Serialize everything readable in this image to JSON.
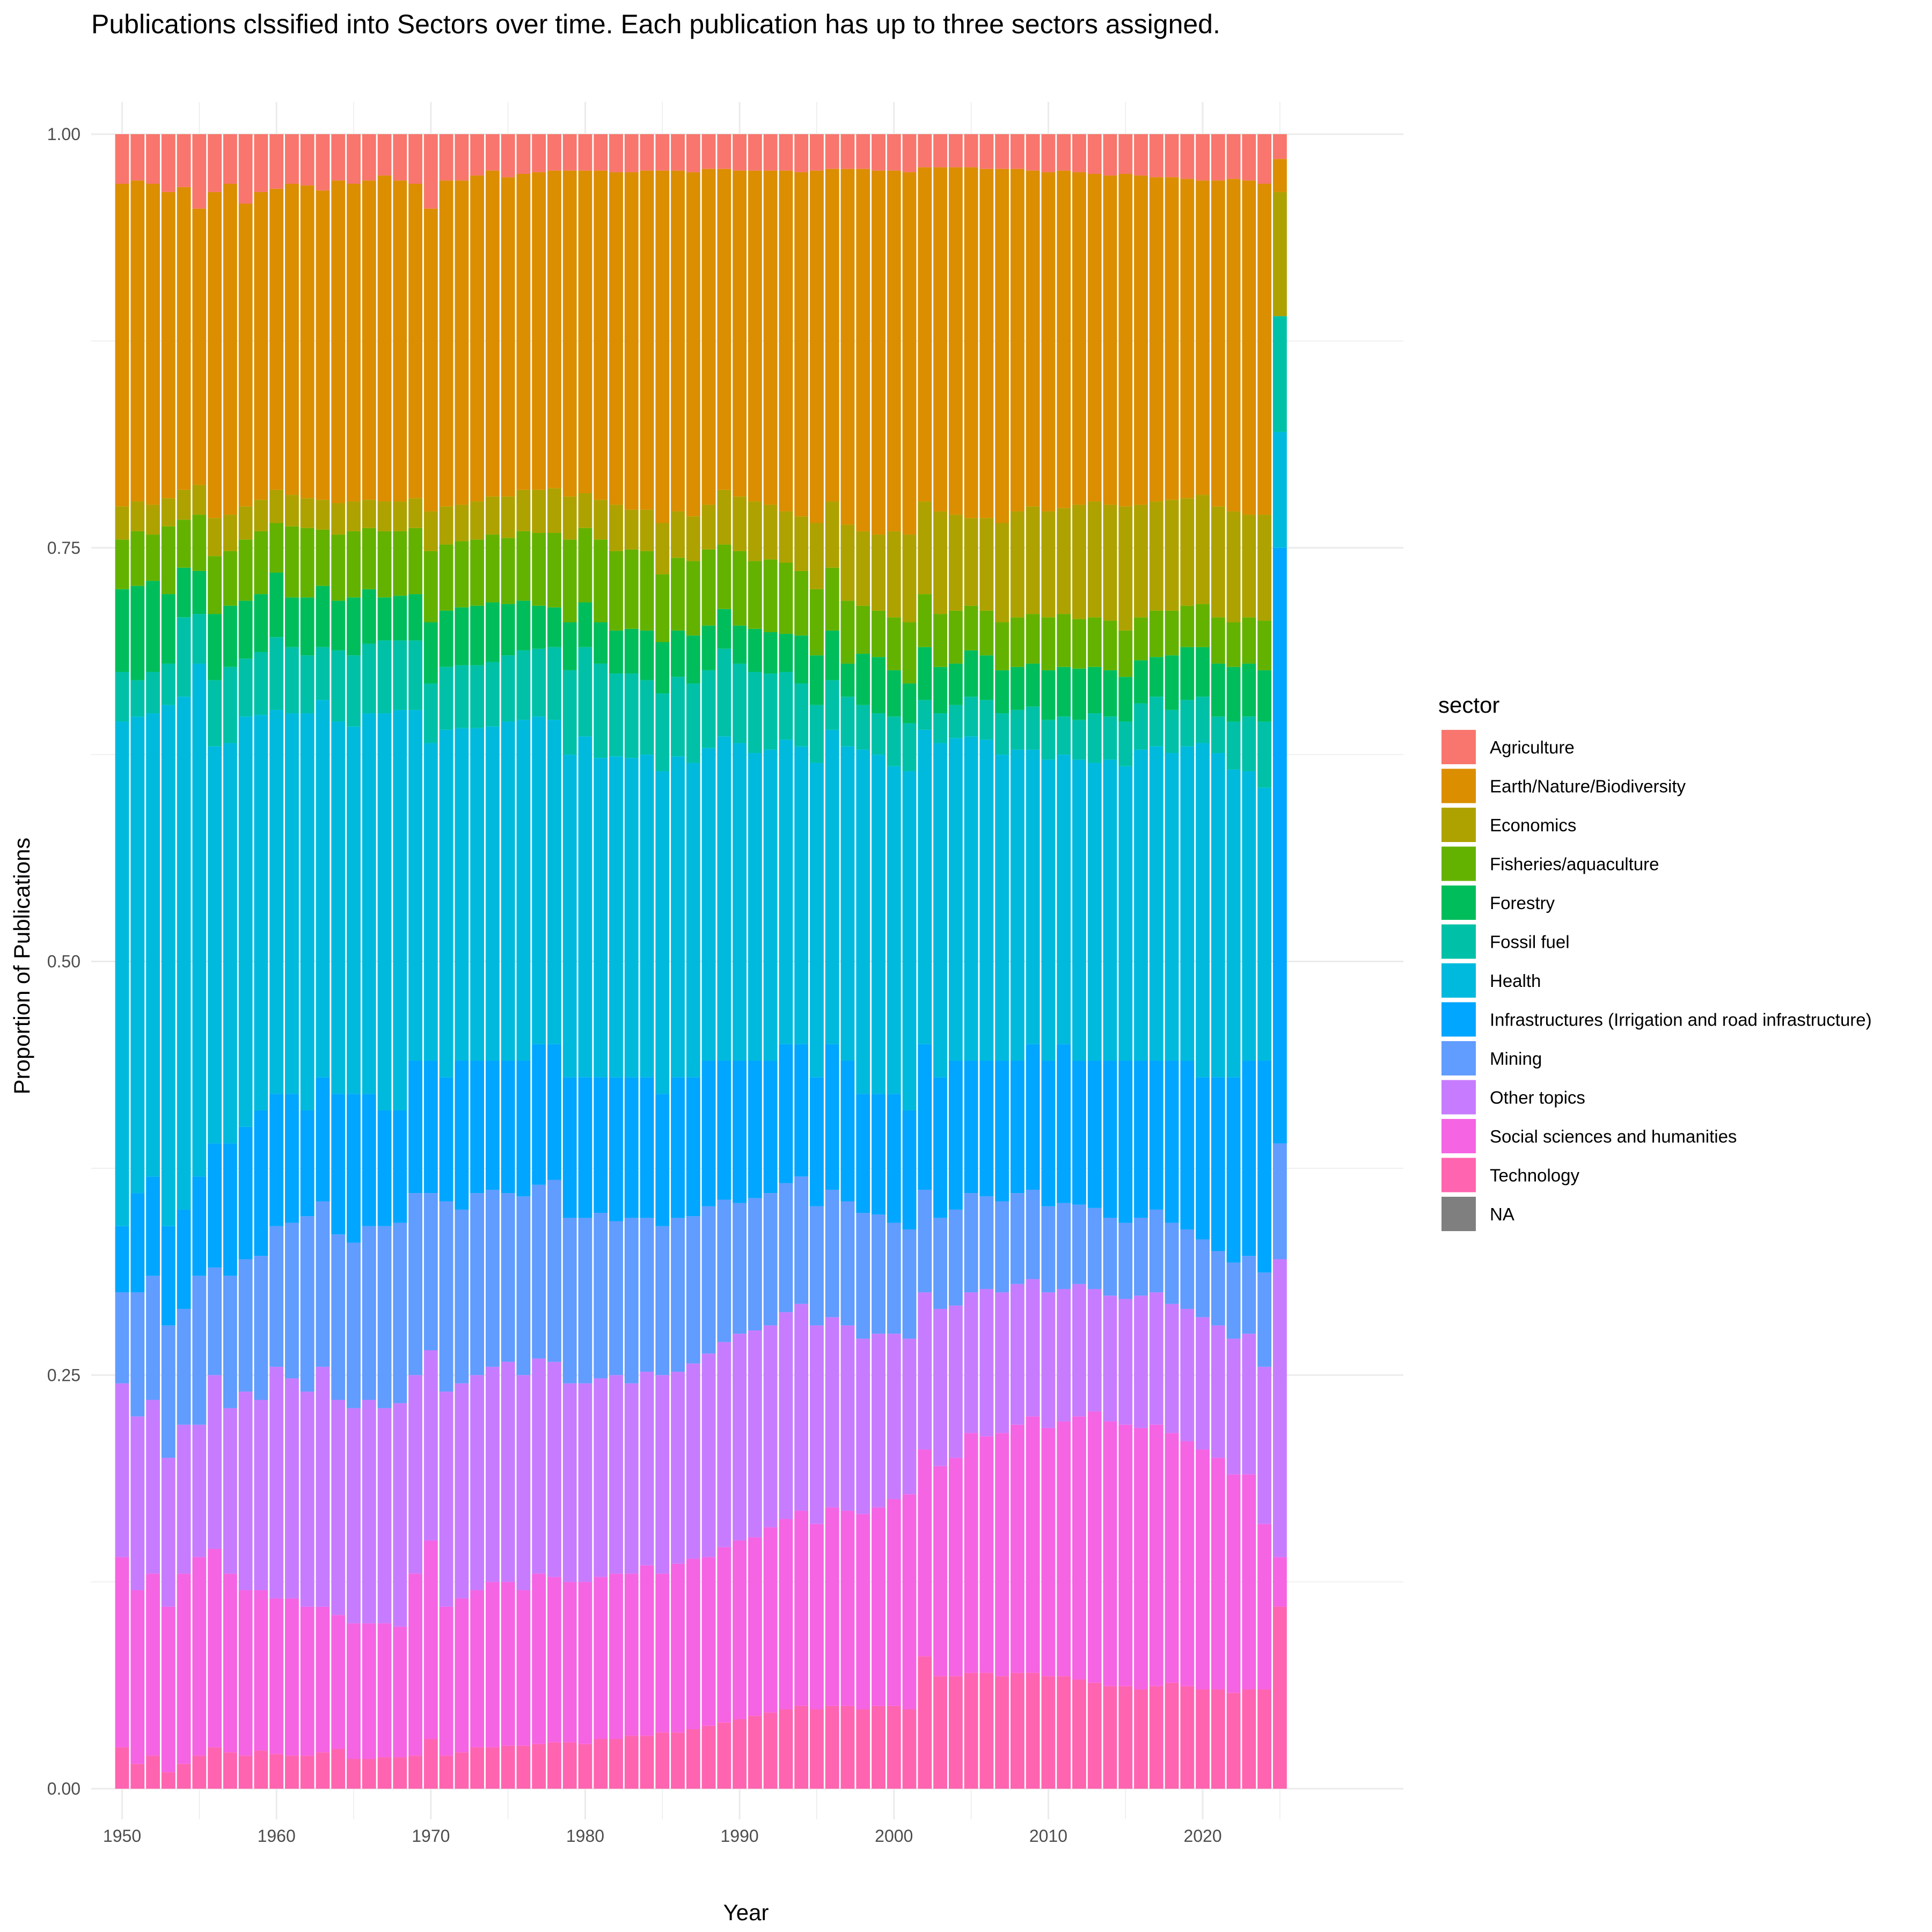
{
  "chart_data": {
    "type": "bar",
    "stacked": "proportional",
    "title": "Publications clssified into Sectors over time. Each publication has up to three sectors assigned.",
    "xlabel": "Year",
    "ylabel": "Proportion of Publications",
    "ylim": [
      0,
      1
    ],
    "xlim": [
      1948,
      2033
    ],
    "x_ticks": [
      1950,
      1960,
      1970,
      1980,
      1990,
      2000,
      2010,
      2020
    ],
    "y_ticks": [
      "0.00",
      "0.25",
      "0.50",
      "0.75",
      "1.00"
    ],
    "grid": true,
    "legend_title": "sector",
    "legend_position": "right",
    "series": [
      {
        "name": "Agriculture",
        "color": "#F8766D"
      },
      {
        "name": "Earth/Nature/Biodiversity",
        "color": "#DB8E00"
      },
      {
        "name": "Economics",
        "color": "#AEA200"
      },
      {
        "name": "Fisheries/aquaculture",
        "color": "#64B200"
      },
      {
        "name": "Forestry",
        "color": "#00BD5C"
      },
      {
        "name": "Fossil fuel",
        "color": "#00C1A7"
      },
      {
        "name": "Health",
        "color": "#00BADE"
      },
      {
        "name": "Infrastructures (Irrigation and road infrastructure)",
        "color": "#00A6FF"
      },
      {
        "name": "Mining",
        "color": "#619CFF"
      },
      {
        "name": "Other topics",
        "color": "#C77CFF"
      },
      {
        "name": "Social sciences and humanities",
        "color": "#F564E3"
      },
      {
        "name": "Technology",
        "color": "#FF64B0"
      },
      {
        "name": "NA",
        "color": "#7F7F7F"
      }
    ],
    "years": [
      1950,
      1951,
      1952,
      1953,
      1954,
      1955,
      1956,
      1957,
      1958,
      1959,
      1960,
      1961,
      1962,
      1963,
      1964,
      1965,
      1966,
      1967,
      1968,
      1969,
      1970,
      1971,
      1972,
      1973,
      1974,
      1975,
      1976,
      1977,
      1978,
      1979,
      1980,
      1981,
      1982,
      1983,
      1984,
      1985,
      1986,
      1987,
      1988,
      1989,
      1990,
      1991,
      1992,
      1993,
      1994,
      1995,
      1996,
      1997,
      1998,
      1999,
      2000,
      2001,
      2002,
      2003,
      2004,
      2005,
      2006,
      2007,
      2008,
      2009,
      2010,
      2011,
      2012,
      2013,
      2014,
      2015,
      2016,
      2017,
      2018,
      2019,
      2020,
      2021,
      2022,
      2023,
      2024,
      2025
    ],
    "cumulative_boundaries_note": "stack tops from bottom (Technology) upward; Agriculture fills to 1.00",
    "cumulative": [
      [
        0.025,
        0.14,
        0.245,
        0.3,
        0.34,
        0.645,
        0.675,
        0.725,
        0.755,
        0.775,
        0.97
      ],
      [
        0.015,
        0.12,
        0.225,
        0.3,
        0.36,
        0.648,
        0.67,
        0.727,
        0.76,
        0.778,
        0.972
      ],
      [
        0.02,
        0.13,
        0.235,
        0.31,
        0.37,
        0.65,
        0.675,
        0.73,
        0.758,
        0.776,
        0.97
      ],
      [
        0.01,
        0.11,
        0.2,
        0.28,
        0.34,
        0.655,
        0.68,
        0.722,
        0.763,
        0.78,
        0.965
      ],
      [
        0.015,
        0.13,
        0.22,
        0.29,
        0.35,
        0.66,
        0.708,
        0.738,
        0.767,
        0.785,
        0.968
      ],
      [
        0.02,
        0.14,
        0.22,
        0.31,
        0.37,
        0.68,
        0.71,
        0.736,
        0.77,
        0.788,
        0.955
      ],
      [
        0.025,
        0.145,
        0.25,
        0.315,
        0.39,
        0.63,
        0.67,
        0.71,
        0.745,
        0.768,
        0.965
      ],
      [
        0.022,
        0.13,
        0.23,
        0.31,
        0.39,
        0.632,
        0.678,
        0.715,
        0.748,
        0.77,
        0.97
      ],
      [
        0.02,
        0.12,
        0.24,
        0.32,
        0.4,
        0.648,
        0.683,
        0.718,
        0.755,
        0.775,
        0.958
      ],
      [
        0.023,
        0.12,
        0.235,
        0.322,
        0.41,
        0.649,
        0.687,
        0.722,
        0.76,
        0.779,
        0.965
      ],
      [
        0.021,
        0.115,
        0.255,
        0.34,
        0.42,
        0.652,
        0.696,
        0.735,
        0.765,
        0.785,
        0.967
      ],
      [
        0.02,
        0.115,
        0.248,
        0.342,
        0.42,
        0.65,
        0.69,
        0.72,
        0.763,
        0.782,
        0.97
      ],
      [
        0.02,
        0.11,
        0.24,
        0.346,
        0.41,
        0.65,
        0.685,
        0.72,
        0.762,
        0.78,
        0.969
      ],
      [
        0.022,
        0.11,
        0.255,
        0.355,
        0.43,
        0.658,
        0.69,
        0.727,
        0.761,
        0.779,
        0.966
      ],
      [
        0.024,
        0.105,
        0.235,
        0.335,
        0.42,
        0.645,
        0.688,
        0.718,
        0.758,
        0.777,
        0.972
      ],
      [
        0.018,
        0.1,
        0.23,
        0.33,
        0.42,
        0.642,
        0.685,
        0.72,
        0.76,
        0.778,
        0.97
      ],
      [
        0.018,
        0.1,
        0.235,
        0.34,
        0.42,
        0.65,
        0.692,
        0.725,
        0.762,
        0.779,
        0.972
      ],
      [
        0.019,
        0.1,
        0.23,
        0.34,
        0.41,
        0.65,
        0.694,
        0.72,
        0.76,
        0.778,
        0.975
      ],
      [
        0.019,
        0.098,
        0.233,
        0.342,
        0.41,
        0.652,
        0.694,
        0.721,
        0.76,
        0.778,
        0.972
      ],
      [
        0.02,
        0.13,
        0.25,
        0.36,
        0.44,
        0.652,
        0.694,
        0.722,
        0.762,
        0.78,
        0.97
      ],
      [
        0.03,
        0.15,
        0.265,
        0.36,
        0.44,
        0.632,
        0.668,
        0.705,
        0.748,
        0.772,
        0.955
      ],
      [
        0.02,
        0.11,
        0.24,
        0.355,
        0.43,
        0.64,
        0.678,
        0.712,
        0.752,
        0.775,
        0.972
      ],
      [
        0.022,
        0.115,
        0.245,
        0.35,
        0.44,
        0.641,
        0.679,
        0.714,
        0.754,
        0.776,
        0.972
      ],
      [
        0.025,
        0.12,
        0.25,
        0.36,
        0.44,
        0.641,
        0.679,
        0.715,
        0.755,
        0.778,
        0.975
      ],
      [
        0.025,
        0.125,
        0.255,
        0.362,
        0.44,
        0.642,
        0.681,
        0.717,
        0.758,
        0.781,
        0.978
      ],
      [
        0.026,
        0.125,
        0.258,
        0.36,
        0.44,
        0.645,
        0.685,
        0.716,
        0.756,
        0.781,
        0.974
      ],
      [
        0.026,
        0.12,
        0.25,
        0.358,
        0.44,
        0.646,
        0.688,
        0.718,
        0.76,
        0.785,
        0.976
      ],
      [
        0.027,
        0.13,
        0.26,
        0.365,
        0.45,
        0.648,
        0.689,
        0.715,
        0.759,
        0.785,
        0.977
      ],
      [
        0.028,
        0.128,
        0.258,
        0.368,
        0.45,
        0.646,
        0.69,
        0.714,
        0.759,
        0.786,
        0.978
      ],
      [
        0.028,
        0.125,
        0.245,
        0.345,
        0.43,
        0.625,
        0.676,
        0.705,
        0.755,
        0.781,
        0.978
      ],
      [
        0.027,
        0.125,
        0.245,
        0.345,
        0.43,
        0.636,
        0.69,
        0.717,
        0.762,
        0.783,
        0.978
      ],
      [
        0.03,
        0.128,
        0.248,
        0.348,
        0.43,
        0.623,
        0.68,
        0.705,
        0.755,
        0.779,
        0.978
      ],
      [
        0.03,
        0.13,
        0.25,
        0.343,
        0.43,
        0.624,
        0.674,
        0.7,
        0.748,
        0.776,
        0.977
      ],
      [
        0.032,
        0.13,
        0.245,
        0.345,
        0.43,
        0.623,
        0.674,
        0.701,
        0.749,
        0.773,
        0.977
      ],
      [
        0.032,
        0.135,
        0.252,
        0.345,
        0.43,
        0.625,
        0.67,
        0.7,
        0.748,
        0.773,
        0.978
      ],
      [
        0.034,
        0.13,
        0.25,
        0.34,
        0.42,
        0.615,
        0.662,
        0.693,
        0.734,
        0.765,
        0.978
      ],
      [
        0.034,
        0.136,
        0.252,
        0.345,
        0.43,
        0.624,
        0.672,
        0.7,
        0.744,
        0.772,
        0.978
      ],
      [
        0.036,
        0.139,
        0.257,
        0.346,
        0.43,
        0.62,
        0.668,
        0.697,
        0.742,
        0.769,
        0.977
      ],
      [
        0.038,
        0.14,
        0.263,
        0.352,
        0.44,
        0.629,
        0.676,
        0.703,
        0.749,
        0.776,
        0.979
      ],
      [
        0.04,
        0.146,
        0.27,
        0.356,
        0.44,
        0.636,
        0.689,
        0.713,
        0.752,
        0.785,
        0.979
      ],
      [
        0.042,
        0.15,
        0.275,
        0.354,
        0.44,
        0.632,
        0.68,
        0.703,
        0.748,
        0.781,
        0.978
      ],
      [
        0.044,
        0.152,
        0.277,
        0.357,
        0.44,
        0.626,
        0.675,
        0.701,
        0.742,
        0.778,
        0.978
      ],
      [
        0.046,
        0.158,
        0.28,
        0.36,
        0.44,
        0.628,
        0.674,
        0.699,
        0.743,
        0.776,
        0.978
      ],
      [
        0.048,
        0.163,
        0.288,
        0.366,
        0.45,
        0.634,
        0.675,
        0.698,
        0.741,
        0.772,
        0.978
      ],
      [
        0.05,
        0.168,
        0.293,
        0.37,
        0.45,
        0.63,
        0.668,
        0.697,
        0.736,
        0.769,
        0.977
      ],
      [
        0.048,
        0.16,
        0.28,
        0.352,
        0.43,
        0.62,
        0.655,
        0.685,
        0.725,
        0.765,
        0.978
      ],
      [
        0.05,
        0.17,
        0.285,
        0.362,
        0.45,
        0.64,
        0.67,
        0.7,
        0.738,
        0.778,
        0.979
      ],
      [
        0.05,
        0.168,
        0.28,
        0.355,
        0.44,
        0.63,
        0.66,
        0.68,
        0.718,
        0.764,
        0.979
      ],
      [
        0.048,
        0.166,
        0.272,
        0.348,
        0.42,
        0.628,
        0.655,
        0.686,
        0.715,
        0.76,
        0.979
      ],
      [
        0.05,
        0.17,
        0.275,
        0.347,
        0.42,
        0.625,
        0.65,
        0.684,
        0.712,
        0.758,
        0.978
      ],
      [
        0.05,
        0.175,
        0.275,
        0.342,
        0.42,
        0.618,
        0.648,
        0.676,
        0.708,
        0.76,
        0.978
      ],
      [
        0.048,
        0.178,
        0.272,
        0.338,
        0.41,
        0.615,
        0.644,
        0.668,
        0.705,
        0.758,
        0.977
      ],
      [
        0.08,
        0.205,
        0.3,
        0.362,
        0.45,
        0.64,
        0.658,
        0.69,
        0.722,
        0.778,
        0.98
      ],
      [
        0.068,
        0.195,
        0.29,
        0.345,
        0.43,
        0.632,
        0.65,
        0.678,
        0.71,
        0.772,
        0.98
      ],
      [
        0.068,
        0.2,
        0.292,
        0.35,
        0.44,
        0.635,
        0.655,
        0.68,
        0.712,
        0.77,
        0.98
      ],
      [
        0.07,
        0.215,
        0.3,
        0.36,
        0.44,
        0.636,
        0.66,
        0.688,
        0.715,
        0.768,
        0.98
      ],
      [
        0.07,
        0.213,
        0.302,
        0.358,
        0.44,
        0.634,
        0.658,
        0.685,
        0.712,
        0.768,
        0.979
      ],
      [
        0.068,
        0.215,
        0.3,
        0.355,
        0.44,
        0.625,
        0.65,
        0.676,
        0.705,
        0.765,
        0.979
      ],
      [
        0.07,
        0.22,
        0.305,
        0.36,
        0.44,
        0.628,
        0.652,
        0.678,
        0.708,
        0.772,
        0.979
      ],
      [
        0.07,
        0.225,
        0.308,
        0.362,
        0.45,
        0.628,
        0.654,
        0.68,
        0.71,
        0.775,
        0.978
      ],
      [
        0.068,
        0.218,
        0.3,
        0.352,
        0.44,
        0.622,
        0.646,
        0.676,
        0.708,
        0.772,
        0.977
      ],
      [
        0.068,
        0.222,
        0.302,
        0.354,
        0.45,
        0.625,
        0.648,
        0.678,
        0.71,
        0.774,
        0.978
      ],
      [
        0.066,
        0.225,
        0.305,
        0.353,
        0.44,
        0.622,
        0.646,
        0.677,
        0.707,
        0.776,
        0.977
      ],
      [
        0.064,
        0.228,
        0.302,
        0.351,
        0.44,
        0.62,
        0.65,
        0.678,
        0.708,
        0.778,
        0.976
      ],
      [
        0.062,
        0.222,
        0.298,
        0.345,
        0.44,
        0.622,
        0.648,
        0.676,
        0.706,
        0.776,
        0.975
      ],
      [
        0.062,
        0.22,
        0.296,
        0.342,
        0.44,
        0.618,
        0.645,
        0.672,
        0.7,
        0.775,
        0.976
      ],
      [
        0.06,
        0.218,
        0.298,
        0.345,
        0.44,
        0.628,
        0.656,
        0.682,
        0.708,
        0.776,
        0.975
      ],
      [
        0.062,
        0.22,
        0.3,
        0.35,
        0.44,
        0.63,
        0.66,
        0.684,
        0.712,
        0.778,
        0.974
      ],
      [
        0.064,
        0.215,
        0.293,
        0.342,
        0.44,
        0.626,
        0.652,
        0.685,
        0.712,
        0.779,
        0.974
      ],
      [
        0.062,
        0.21,
        0.29,
        0.338,
        0.44,
        0.63,
        0.658,
        0.69,
        0.715,
        0.78,
        0.973
      ],
      [
        0.06,
        0.205,
        0.285,
        0.332,
        0.43,
        0.632,
        0.66,
        0.69,
        0.716,
        0.782,
        0.972
      ],
      [
        0.06,
        0.2,
        0.28,
        0.325,
        0.43,
        0.626,
        0.648,
        0.68,
        0.708,
        0.775,
        0.972
      ],
      [
        0.058,
        0.19,
        0.272,
        0.318,
        0.43,
        0.616,
        0.645,
        0.678,
        0.705,
        0.772,
        0.973
      ],
      [
        0.06,
        0.19,
        0.275,
        0.322,
        0.44,
        0.615,
        0.648,
        0.68,
        0.708,
        0.77,
        0.972
      ],
      [
        0.06,
        0.16,
        0.255,
        0.312,
        0.44,
        0.605,
        0.645,
        0.676,
        0.706,
        0.77,
        0.97
      ],
      [
        0.11,
        0.14,
        0.32,
        0.39,
        0.75,
        0.82,
        0.89,
        0.89,
        0.89,
        0.965,
        0.985
      ]
    ]
  },
  "sector_legend_keys": [
    "Agriculture",
    "Earth/Nature/Biodiversity",
    "Economics",
    "Fisheries/aquaculture",
    "Forestry",
    "Fossil fuel",
    "Health",
    "Infrastructures (Irrigation and road infrastructure)",
    "Mining",
    "Other topics",
    "Social sciences and humanities",
    "Technology",
    "NA"
  ]
}
